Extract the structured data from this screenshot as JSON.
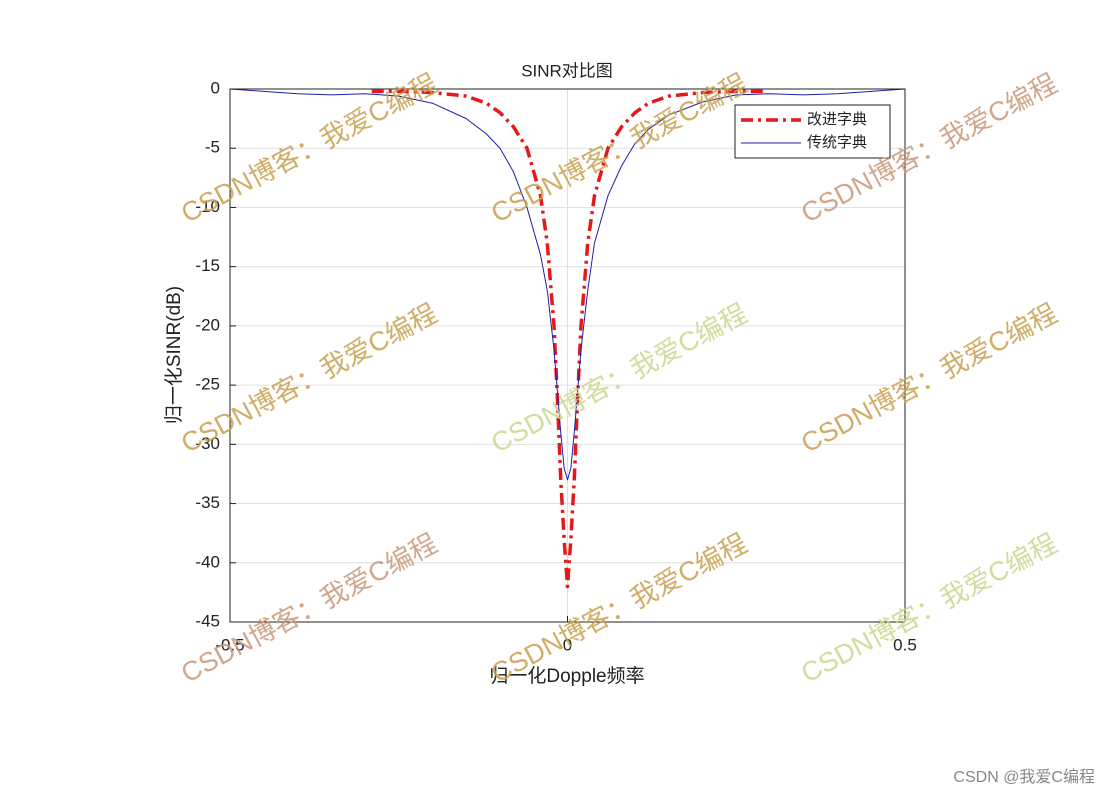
{
  "chart_data": {
    "type": "line",
    "title": "SINR对比图",
    "x_label": "归一化Dopple频率",
    "y_label": "归一化SINR(dB)",
    "xlim": [
      -0.5,
      0.5
    ],
    "xticks": [
      -0.5,
      0,
      0.5
    ],
    "ylim": [
      -45,
      0
    ],
    "yticks": [
      0,
      -5,
      -10,
      -15,
      -20,
      -25,
      -30,
      -35,
      -40,
      -45
    ],
    "grid": true,
    "legend": "northeast",
    "series": [
      {
        "name": "改进字典",
        "color": "#e31a1a",
        "x": [
          -0.29,
          -0.25,
          -0.2,
          -0.15,
          -0.12,
          -0.1,
          -0.08,
          -0.06,
          -0.04,
          -0.03,
          -0.02,
          -0.015,
          -0.01,
          -0.005,
          0,
          0.005,
          0.01,
          0.015,
          0.02,
          0.03,
          0.04,
          0.06,
          0.08,
          0.1,
          0.12,
          0.15,
          0.2,
          0.25,
          0.29
        ],
        "values": [
          -0.2,
          -0.2,
          -0.3,
          -0.6,
          -1.2,
          -2,
          -3.2,
          -5,
          -9,
          -13,
          -20,
          -26,
          -33,
          -38,
          -42,
          -38,
          -33,
          -26,
          -20,
          -13,
          -9,
          -5,
          -3.2,
          -2,
          -1.2,
          -0.6,
          -0.3,
          -0.2,
          -0.2
        ]
      },
      {
        "name": "传统字典",
        "color": "#1f1fa8",
        "x": [
          -0.5,
          -0.45,
          -0.4,
          -0.35,
          -0.3,
          -0.25,
          -0.2,
          -0.15,
          -0.12,
          -0.1,
          -0.08,
          -0.06,
          -0.04,
          -0.03,
          -0.02,
          -0.01,
          -0.005,
          0,
          0.005,
          0.01,
          0.02,
          0.03,
          0.04,
          0.06,
          0.08,
          0.1,
          0.12,
          0.15,
          0.2,
          0.25,
          0.3,
          0.35,
          0.4,
          0.45,
          0.5
        ],
        "values": [
          0,
          -0.2,
          -0.4,
          -0.5,
          -0.4,
          -0.6,
          -1.2,
          -2.5,
          -3.8,
          -5,
          -7,
          -10,
          -14,
          -17,
          -22,
          -29,
          -32,
          -33,
          -32,
          -29,
          -22,
          -17,
          -13,
          -9,
          -6.5,
          -4.6,
          -3.4,
          -2.2,
          -1.1,
          -0.5,
          -0.4,
          -0.5,
          -0.4,
          -0.2,
          0
        ]
      }
    ],
    "watermark": "CSDN博客：我爱C编程",
    "credit": "CSDN @我爱C编程"
  }
}
